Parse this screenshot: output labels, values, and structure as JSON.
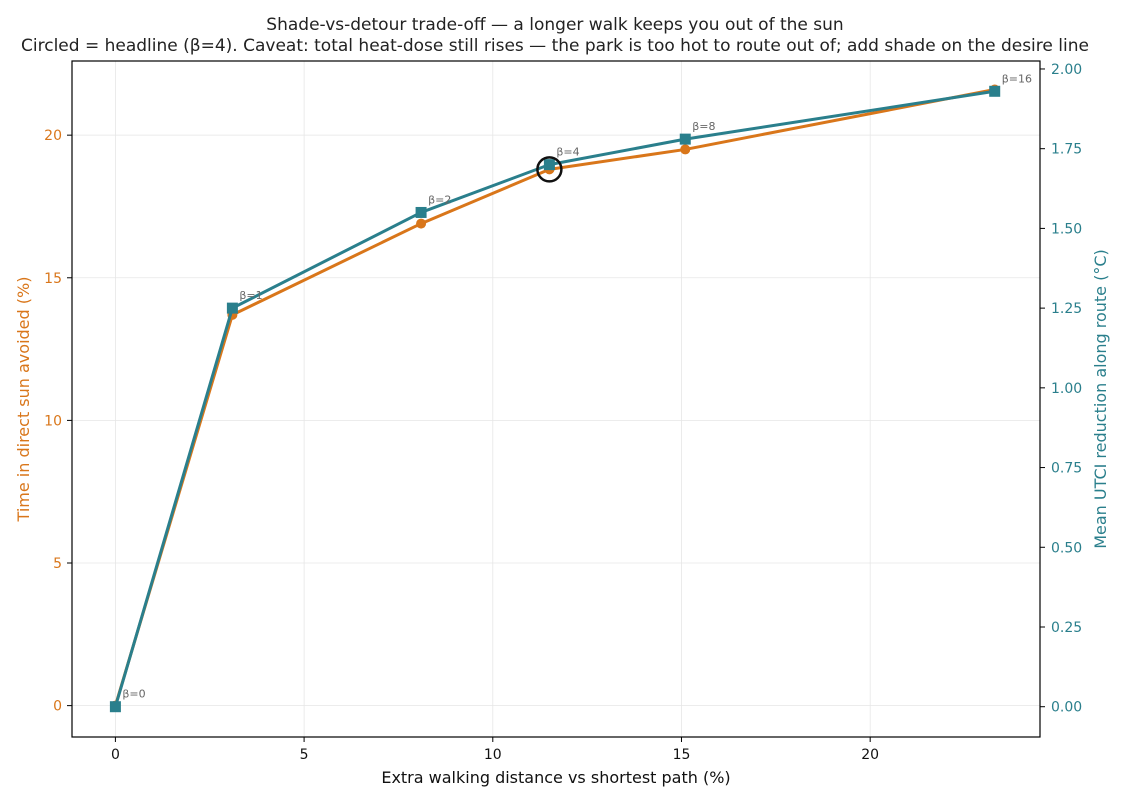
{
  "chart_data": {
    "type": "line",
    "title": "Shade-vs-detour trade-off — a longer walk keeps you out of the sun",
    "subtitle": "Circled = headline (β=4). Caveat: total heat-dose still rises — the park is too hot to route out of; add shade on the desire line",
    "xlabel": "Extra walking distance vs shortest path (%)",
    "ylabel_left": "Time in direct sun avoided (%)",
    "ylabel_right": "Mean UTCI reduction along route (°C)",
    "xlim": [
      -1.15,
      24.5
    ],
    "ylim_left": [
      -1.1,
      22.6
    ],
    "ylim_right": [
      -0.095,
      2.025
    ],
    "x_ticks": [
      0,
      5,
      10,
      15,
      20
    ],
    "y_ticks_left": [
      0,
      5,
      10,
      15,
      20
    ],
    "y_ticks_right": [
      "0.00",
      "0.25",
      "0.50",
      "0.75",
      "1.00",
      "1.25",
      "1.50",
      "1.75",
      "2.00"
    ],
    "grid": true,
    "colors": {
      "left": "#d9761a",
      "right": "#2a7f8c",
      "highlight": "#111111",
      "annotation": "#666666"
    },
    "series": [
      {
        "axis": "left",
        "marker": "circle",
        "x": [
          0,
          3.1,
          8.1,
          11.5,
          15.1,
          23.3
        ],
        "y": [
          0,
          13.7,
          16.9,
          18.8,
          19.5,
          21.6
        ]
      },
      {
        "axis": "right",
        "marker": "square",
        "x": [
          0,
          3.1,
          8.1,
          11.5,
          15.1,
          23.3
        ],
        "y": [
          0,
          1.25,
          1.55,
          1.7,
          1.78,
          1.93
        ]
      }
    ],
    "point_labels": [
      "β=0",
      "β=1",
      "β=2",
      "β=4",
      "β=8",
      "β=16"
    ],
    "highlight_index": 3
  }
}
